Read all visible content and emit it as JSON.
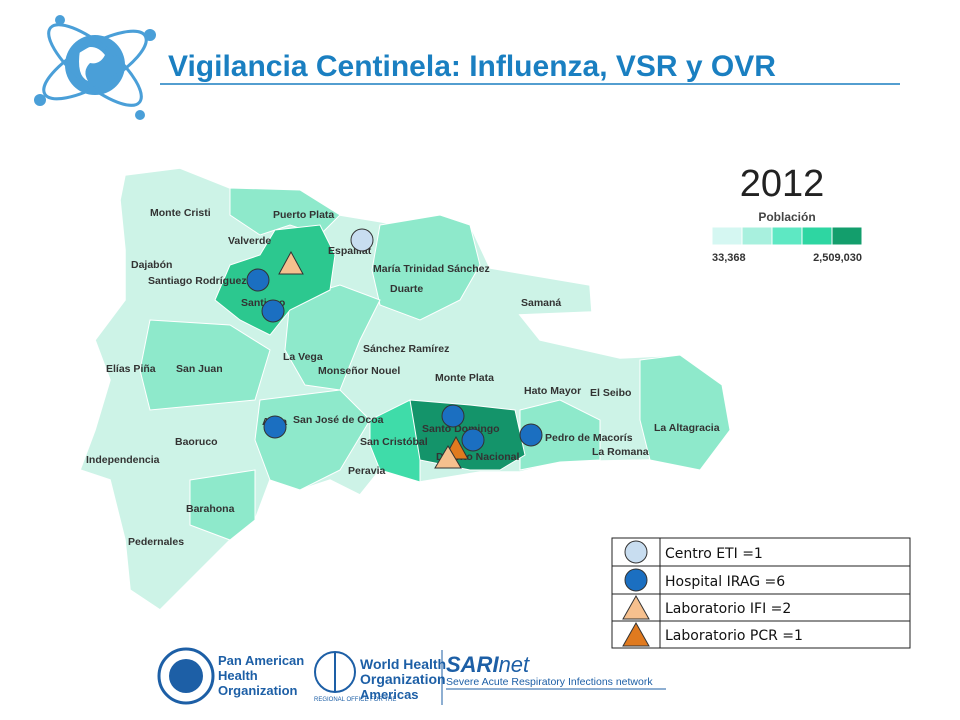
{
  "header": {
    "title": "Vigilancia Centinela: Influenza, VSR y OVR"
  },
  "map": {
    "year": "2012",
    "legend": {
      "title": "Población",
      "min_label": "33,368",
      "max_label": "2,509,030"
    },
    "provinces": [
      "Monte Cristi",
      "Puerto Plata",
      "Valverde",
      "Espaillat",
      "Dajabón",
      "Santiago Rodríguez",
      "Santiago",
      "María Trinidad Sánchez",
      "Duarte",
      "Samaná",
      "Sánchez Ramírez",
      "La Vega",
      "Elías Piña",
      "San Juan",
      "Monseñor Nouel",
      "Monte Plata",
      "Hato Mayor",
      "El Seibo",
      "Azua",
      "San José de Ocoa",
      "Santo Domingo",
      "Baoruco",
      "San Cristóbal",
      "Distrito Nacional",
      "Pedro de Macorís",
      "La Altagracia",
      "La Romana",
      "Independencia",
      "Peravia",
      "Barahona",
      "Pedernales"
    ]
  },
  "marker_legend": {
    "rows": [
      "Centro ETI =1",
      "Hospital IRAG =6",
      "Laboratorio IFI =2",
      "Laboratorio PCR =1"
    ]
  },
  "footer": {
    "paho": [
      "Pan American",
      "Health",
      "Organization"
    ],
    "who": [
      "World Health",
      "Organization",
      "REGIONAL OFFICE FOR THE",
      "Americas"
    ],
    "sari": "SARI",
    "sari_suffix": "net",
    "sari_caption": "Severe Acute Respiratory Infections network"
  }
}
